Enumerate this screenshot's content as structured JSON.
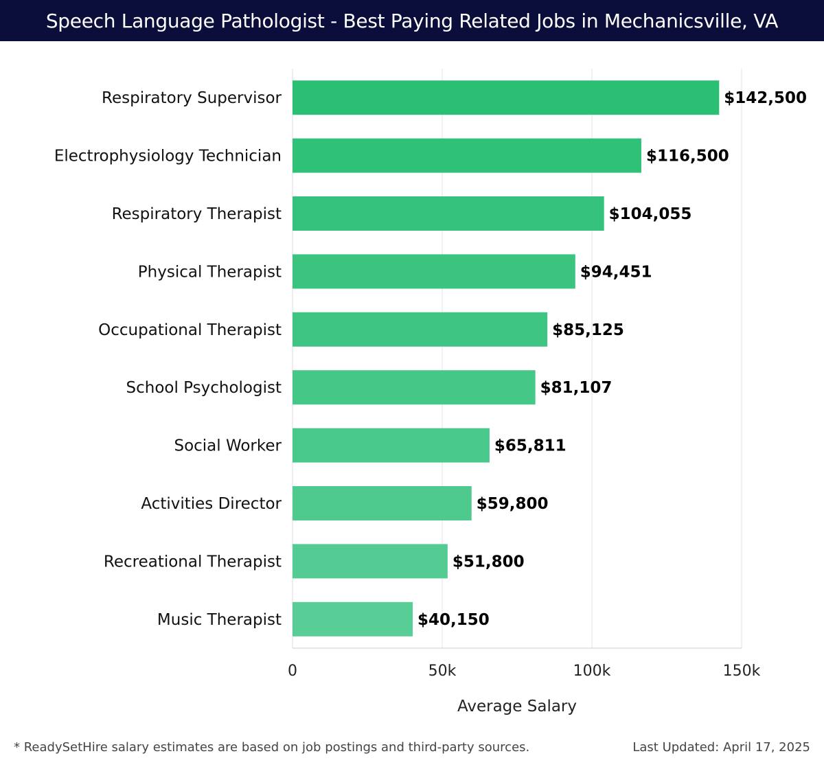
{
  "header": {
    "title": "Speech Language Pathologist - Best Paying Related Jobs in Mechanicsville, VA"
  },
  "chart_data": {
    "type": "bar",
    "orientation": "horizontal",
    "categories": [
      "Respiratory Supervisor",
      "Electrophysiology Technician",
      "Respiratory Therapist",
      "Physical Therapist",
      "Occupational Therapist",
      "School Psychologist",
      "Social Worker",
      "Activities Director",
      "Recreational Therapist",
      "Music Therapist"
    ],
    "values": [
      142500,
      116500,
      104055,
      94451,
      85125,
      81107,
      65811,
      59800,
      51800,
      40150
    ],
    "value_labels": [
      "$142,500",
      "$116,500",
      "$104,055",
      "$94,451",
      "$85,125",
      "$81,107",
      "$65,811",
      "$59,800",
      "$51,800",
      "$40,150"
    ],
    "xlabel": "Average Salary",
    "ylabel": "",
    "xlim": [
      0,
      150000
    ],
    "x_ticks": [
      0,
      50000,
      100000,
      150000
    ],
    "x_tick_labels": [
      "0",
      "50k",
      "100k",
      "150k"
    ],
    "grid": true,
    "bar_color_top": "#2bbf74",
    "bar_color_bottom": "#58cd96"
  },
  "footer": {
    "note": "* ReadySetHire salary estimates are based on job postings and third-party sources.",
    "updated": "Last Updated: April 17, 2025"
  }
}
